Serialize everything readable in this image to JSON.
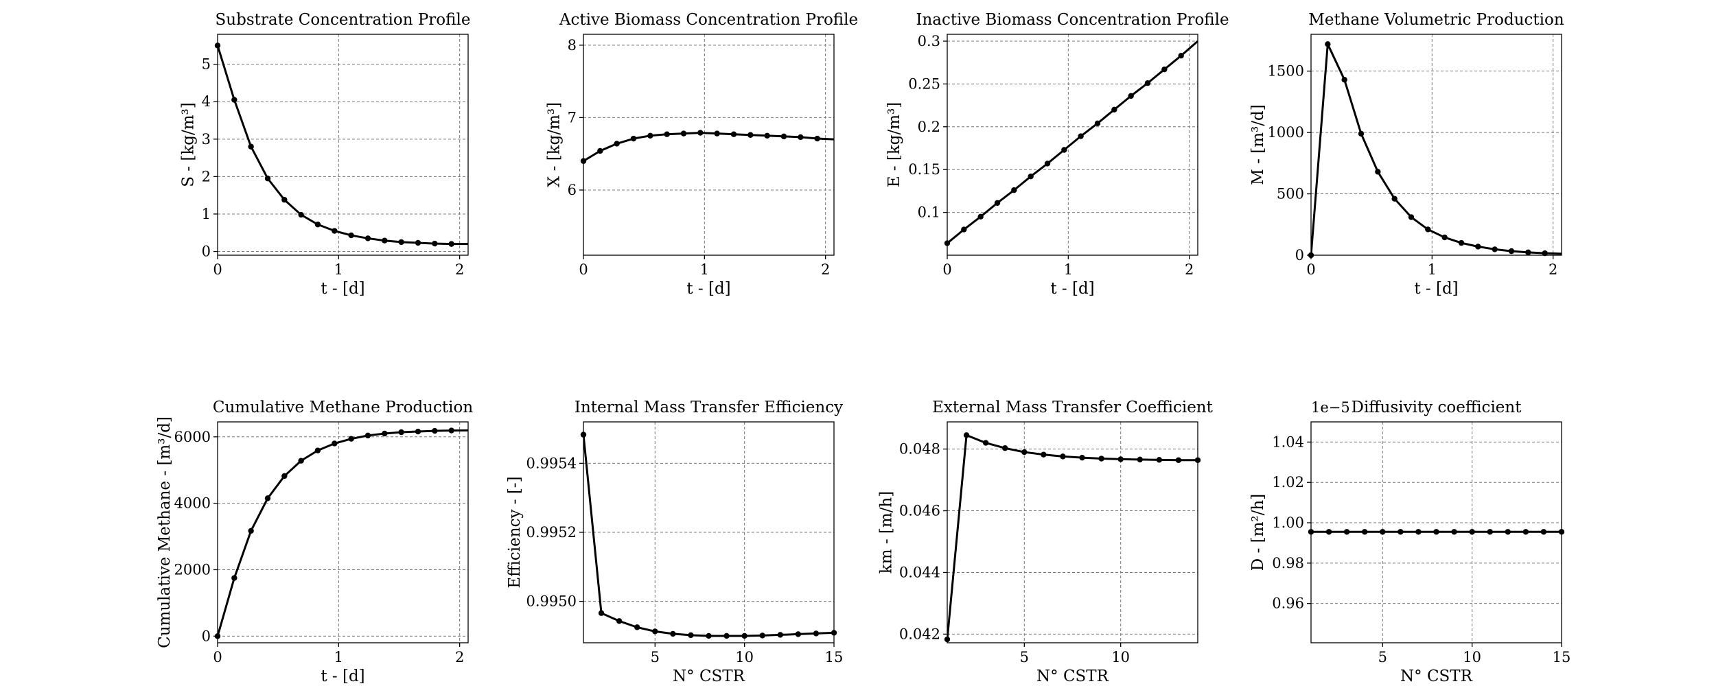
{
  "chart_data": [
    {
      "type": "line",
      "title": "Substrate Concentration Profile",
      "xlabel": "t - [d]",
      "ylabel": "S - [kg/m³]",
      "xlim": [
        0,
        2.07
      ],
      "ylim": [
        -0.1,
        5.8
      ],
      "xticks": [
        0,
        1,
        2
      ],
      "yticks": [
        0,
        1,
        2,
        3,
        4,
        5
      ],
      "x": [
        0,
        0.138,
        0.276,
        0.414,
        0.552,
        0.69,
        0.828,
        0.966,
        1.104,
        1.242,
        1.38,
        1.518,
        1.656,
        1.794,
        1.932,
        2.07
      ],
      "y": [
        5.5,
        4.05,
        2.8,
        1.95,
        1.38,
        0.98,
        0.72,
        0.55,
        0.43,
        0.35,
        0.29,
        0.25,
        0.23,
        0.21,
        0.2,
        0.2
      ],
      "markers": 15
    },
    {
      "type": "line",
      "title": "Active Biomass Concentration Profile",
      "xlabel": "t - [d]",
      "ylabel": "X - [kg/m³]",
      "xlim": [
        0,
        2.07
      ],
      "ylim": [
        5.1,
        8.15
      ],
      "xticks": [
        0,
        1,
        2
      ],
      "yticks": [
        6,
        7,
        8
      ],
      "x": [
        0,
        0.138,
        0.276,
        0.414,
        0.552,
        0.69,
        0.828,
        0.966,
        1.104,
        1.242,
        1.38,
        1.518,
        1.656,
        1.794,
        1.932,
        2.07
      ],
      "y": [
        6.4,
        6.54,
        6.64,
        6.71,
        6.75,
        6.77,
        6.78,
        6.79,
        6.78,
        6.77,
        6.76,
        6.75,
        6.74,
        6.73,
        6.71,
        6.7
      ],
      "markers": 15
    },
    {
      "type": "line",
      "title": "Inactive Biomass Concentration Profile",
      "xlabel": "t - [d]",
      "ylabel": "E - [kg/m³]",
      "xlim": [
        0,
        2.07
      ],
      "ylim": [
        0.05,
        0.308
      ],
      "xticks": [
        0,
        1,
        2
      ],
      "yticks": [
        0.1,
        0.15,
        0.2,
        0.25,
        0.3
      ],
      "x": [
        0,
        0.138,
        0.276,
        0.414,
        0.552,
        0.69,
        0.828,
        0.966,
        1.104,
        1.242,
        1.38,
        1.518,
        1.656,
        1.794,
        1.932,
        2.07
      ],
      "y": [
        0.064,
        0.08,
        0.095,
        0.111,
        0.126,
        0.142,
        0.157,
        0.173,
        0.189,
        0.204,
        0.22,
        0.236,
        0.251,
        0.267,
        0.283,
        0.3
      ],
      "markers": 15
    },
    {
      "type": "line",
      "title": "Methane Volumetric Production",
      "xlabel": "t - [d]",
      "ylabel": "M - [m³/d]",
      "xlim": [
        0,
        2.07
      ],
      "ylim": [
        0,
        1800
      ],
      "xticks": [
        0,
        1,
        2
      ],
      "yticks": [
        0,
        500,
        1000,
        1500
      ],
      "x": [
        0,
        0.138,
        0.276,
        0.414,
        0.552,
        0.69,
        0.828,
        0.966,
        1.104,
        1.242,
        1.38,
        1.518,
        1.656,
        1.794,
        1.932,
        2.07
      ],
      "y": [
        0,
        1720,
        1430,
        990,
        680,
        460,
        310,
        210,
        145,
        100,
        70,
        48,
        33,
        23,
        16,
        12
      ],
      "markers": 15
    },
    {
      "type": "line",
      "title": "Cumulative Methane Production",
      "xlabel": "t - [d]",
      "ylabel": "Cumulative Methane - [m³/d]",
      "xlim": [
        0,
        2.07
      ],
      "ylim": [
        -200,
        6450
      ],
      "xticks": [
        0,
        1,
        2
      ],
      "yticks": [
        0,
        2000,
        4000,
        6000
      ],
      "x": [
        0,
        0.138,
        0.276,
        0.414,
        0.552,
        0.69,
        0.828,
        0.966,
        1.104,
        1.242,
        1.38,
        1.518,
        1.656,
        1.794,
        1.932,
        2.07
      ],
      "y": [
        0,
        1750,
        3170,
        4150,
        4820,
        5280,
        5590,
        5800,
        5940,
        6040,
        6100,
        6140,
        6160,
        6180,
        6190,
        6195
      ],
      "markers": 15
    },
    {
      "type": "line",
      "title": "Internal Mass Transfer Efficiency",
      "xlabel": "N° CSTR",
      "ylabel": "Efficiency - [-]",
      "xlim": [
        1,
        15
      ],
      "ylim": [
        0.99488,
        0.99552
      ],
      "xticks": [
        5,
        10,
        15
      ],
      "yticks": [
        0.995,
        0.9952,
        0.9954
      ],
      "xtick_labels": [
        "5",
        "10",
        "15"
      ],
      "ytick_labels": [
        "0.9950",
        "0.9952",
        "0.9954"
      ],
      "x": [
        1,
        2,
        3,
        4,
        5,
        6,
        7,
        8,
        9,
        10,
        11,
        12,
        13,
        14,
        15
      ],
      "y": [
        0.995483,
        0.994966,
        0.994943,
        0.994925,
        0.994913,
        0.994906,
        0.994902,
        0.9949,
        0.9949,
        0.9949,
        0.994901,
        0.994903,
        0.994905,
        0.994907,
        0.994909
      ],
      "markers": 15
    },
    {
      "type": "line",
      "title": "External Mass Transfer Coefficient",
      "xlabel": "N° CSTR",
      "ylabel": "km - [m/h]",
      "xlim": [
        1,
        14
      ],
      "ylim": [
        0.04172,
        0.04888
      ],
      "xticks": [
        5,
        10
      ],
      "yticks": [
        0.042,
        0.044,
        0.046,
        0.048
      ],
      "xtick_labels": [
        "5",
        "10"
      ],
      "ytick_labels": [
        "0.042",
        "0.044",
        "0.046",
        "0.048"
      ],
      "x": [
        1,
        2,
        3,
        4,
        5,
        6,
        7,
        8,
        9,
        10,
        11,
        12,
        13,
        14
      ],
      "y": [
        0.04183,
        0.04845,
        0.0482,
        0.04803,
        0.0479,
        0.04782,
        0.04776,
        0.04772,
        0.04769,
        0.04767,
        0.04766,
        0.04765,
        0.04764,
        0.04764
      ],
      "markers": 14
    },
    {
      "type": "line",
      "title": "Diffusivity coefficient",
      "xlabel": "N° CSTR",
      "ylabel": "D - [m²/h]",
      "offset_text": "1e−5",
      "xlim": [
        1,
        15
      ],
      "ylim": [
        0.9405,
        1.05
      ],
      "xticks": [
        5,
        10,
        15
      ],
      "yticks": [
        0.96,
        0.98,
        1.0,
        1.02,
        1.04
      ],
      "xtick_labels": [
        "5",
        "10",
        "15"
      ],
      "ytick_labels": [
        "0.96",
        "0.98",
        "1.00",
        "1.02",
        "1.04"
      ],
      "x": [
        1,
        2,
        3,
        4,
        5,
        6,
        7,
        8,
        9,
        10,
        11,
        12,
        13,
        14,
        15
      ],
      "y": [
        0.9955,
        0.9955,
        0.9955,
        0.9955,
        0.9955,
        0.9955,
        0.9955,
        0.9955,
        0.9955,
        0.9955,
        0.9955,
        0.9955,
        0.9955,
        0.9955,
        0.9955
      ],
      "markers": 15
    }
  ]
}
